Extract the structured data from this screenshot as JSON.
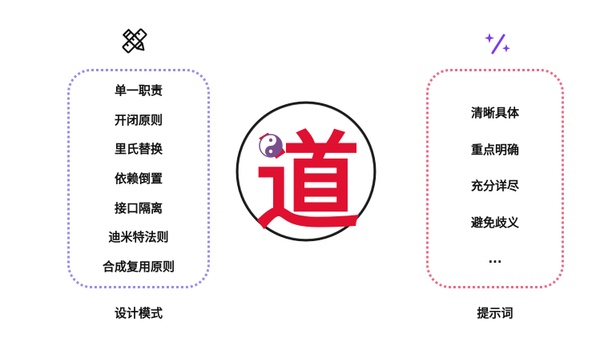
{
  "left_panel": {
    "icon": "pencil-ruler-icon",
    "items": [
      "单一职责",
      "开闭原则",
      "里氏替换",
      "依赖倒置",
      "接口隔离",
      "迪米特法则",
      "合成复用原则"
    ],
    "caption": "设计模式",
    "border_color": "#9a8bea"
  },
  "center": {
    "emblem": {
      "icon": "yin-yang-icon",
      "character": "道",
      "character_color": "#e01030",
      "symbol_color": "#7a4f8e"
    }
  },
  "right_panel": {
    "icon": "magic-sparkle-icon",
    "items": [
      "清晰具体",
      "重点明确",
      "充分详尽",
      "避免歧义",
      "..."
    ],
    "caption": "提示词",
    "border_color": "#ec6a86",
    "icon_color": "#7c3aed"
  }
}
